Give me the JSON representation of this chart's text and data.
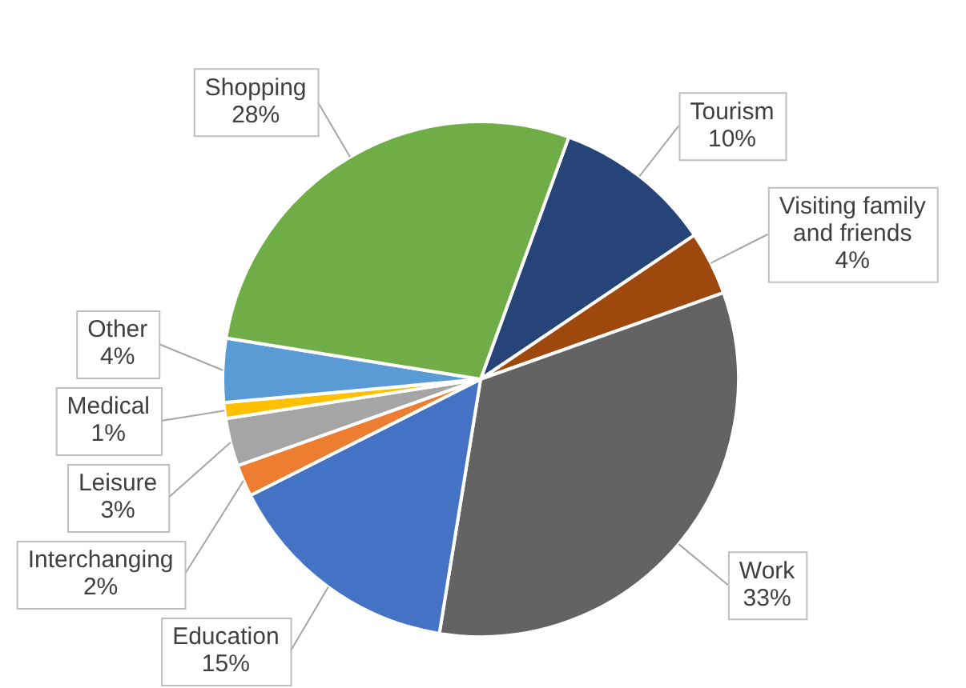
{
  "chart_data": {
    "type": "pie",
    "categories": [
      "Tourism",
      "Visiting family and friends",
      "Work",
      "Education",
      "Interchanging",
      "Leisure",
      "Medical",
      "Other",
      "Shopping"
    ],
    "values": [
      10,
      4,
      33,
      15,
      2,
      3,
      1,
      4,
      28
    ],
    "colors": [
      "#264478",
      "#9e480e",
      "#636363",
      "#4472c4",
      "#ed7d31",
      "#a5a5a5",
      "#ffc000",
      "#5b9bd5",
      "#70ad47"
    ],
    "value_labels": [
      "10%",
      "4%",
      "33%",
      "15%",
      "2%",
      "3%",
      "1%",
      "4%",
      "28%"
    ],
    "legend": false
  }
}
